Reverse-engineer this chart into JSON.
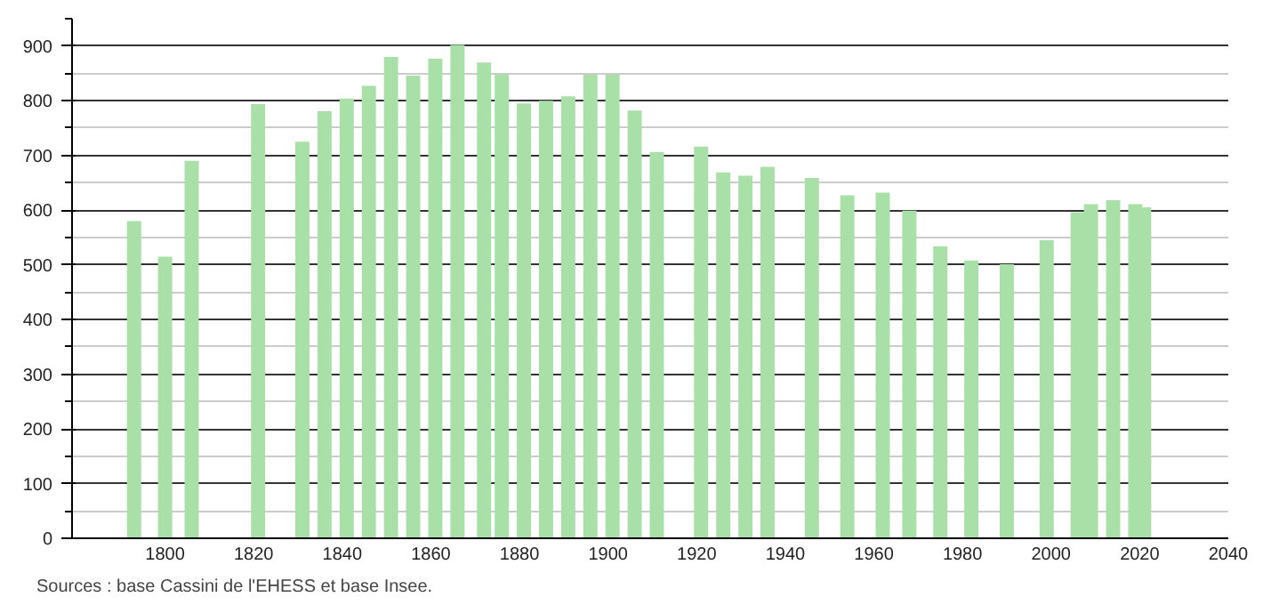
{
  "chart_data": {
    "type": "bar",
    "x": [
      1793,
      1800,
      1806,
      1821,
      1831,
      1836,
      1841,
      1846,
      1851,
      1856,
      1861,
      1866,
      1872,
      1876,
      1881,
      1886,
      1891,
      1896,
      1901,
      1906,
      1911,
      1921,
      1926,
      1931,
      1936,
      1946,
      1954,
      1962,
      1968,
      1975,
      1982,
      1990,
      1999,
      2006,
      2009,
      2014,
      2019,
      2021
    ],
    "values": [
      580,
      515,
      690,
      794,
      725,
      781,
      804,
      827,
      880,
      846,
      877,
      902,
      870,
      848,
      795,
      800,
      808,
      848,
      848,
      782,
      706,
      716,
      669,
      663,
      679,
      659,
      627,
      632,
      599,
      534,
      508,
      501,
      545,
      596,
      611,
      618,
      611,
      605
    ],
    "color": "#a8e0a8",
    "xlim": [
      1779,
      2040
    ],
    "xticks": [
      1800,
      1820,
      1840,
      1860,
      1880,
      1900,
      1920,
      1940,
      1960,
      1980,
      2000,
      2020,
      2040
    ],
    "ylim": [
      0,
      950
    ],
    "yticks": [
      0,
      {
        "value": 50,
        "label": null
      },
      100,
      {
        "value": 150,
        "label": null
      },
      200,
      {
        "value": 250,
        "label": null
      },
      300,
      {
        "value": 350,
        "label": null
      },
      400,
      {
        "value": 450,
        "label": null
      },
      500,
      {
        "value": 550,
        "label": null
      },
      600,
      {
        "value": 650,
        "label": null
      },
      700,
      {
        "value": 750,
        "label": null
      },
      800,
      {
        "value": 850,
        "label": null
      },
      900,
      {
        "value": 950,
        "label": null
      }
    ],
    "grid": "y",
    "annotations": [
      "Sources : base Cassini de l'EHESS et base Insee."
    ]
  }
}
